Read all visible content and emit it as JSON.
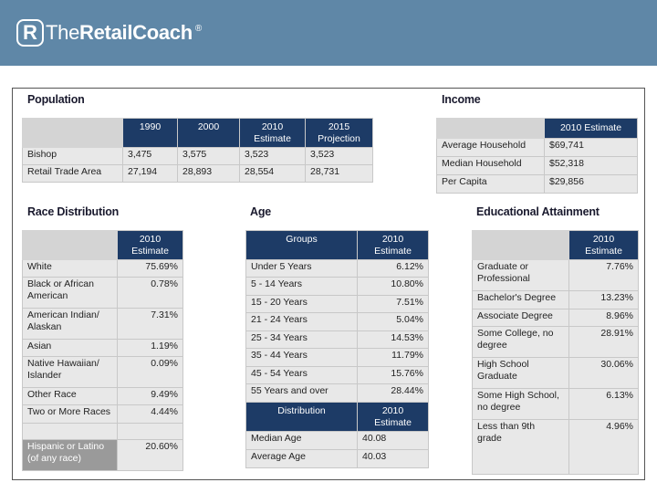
{
  "brand": {
    "mark": "R",
    "name_light": "The",
    "name_bold": "RetailCoach",
    "reg": "®"
  },
  "population": {
    "heading": "Population",
    "columns": [
      "1990",
      "2000",
      "2010\nEstimate",
      "2015\nProjection"
    ],
    "rows": [
      {
        "label": "Bishop",
        "values": [
          "3,475",
          "3,575",
          "3,523",
          "3,523"
        ]
      },
      {
        "label": "Retail Trade Area",
        "values": [
          "27,194",
          "28,893",
          "28,554",
          "28,731"
        ]
      }
    ]
  },
  "income": {
    "heading": "Income",
    "column": "2010 Estimate",
    "rows": [
      {
        "label": "Average Household",
        "value": "$69,741"
      },
      {
        "label": "Median Household",
        "value": "$52,318"
      },
      {
        "label": "Per Capita",
        "value": "$29,856"
      }
    ]
  },
  "race": {
    "heading": "Race Distribution",
    "column": "2010\nEstimate",
    "rows": [
      {
        "label": "White",
        "value": "75.69%"
      },
      {
        "label": "Black or African\nAmerican",
        "value": "0.78%"
      },
      {
        "label": "American Indian/\nAlaskan",
        "value": "7.31%"
      },
      {
        "label": "Asian",
        "value": "1.19%"
      },
      {
        "label": "Native Hawaiian/\nIslander",
        "value": "0.09%"
      },
      {
        "label": "Other Race",
        "value": "9.49%"
      },
      {
        "label": "Two or More Races",
        "value": "4.44%"
      }
    ],
    "hispanic": {
      "label": "Hispanic or Latino\n(of any race)",
      "value": "20.60%"
    }
  },
  "age": {
    "heading": "Age",
    "groups_header": "Groups",
    "column": "2010\nEstimate",
    "rows": [
      {
        "label": "Under 5 Years",
        "value": "6.12%"
      },
      {
        "label": "5 - 14 Years",
        "value": "10.80%"
      },
      {
        "label": "15 - 20 Years",
        "value": "7.51%"
      },
      {
        "label": "21 - 24 Years",
        "value": "5.04%"
      },
      {
        "label": "25 - 34 Years",
        "value": "14.53%"
      },
      {
        "label": "35 - 44 Years",
        "value": "11.79%"
      },
      {
        "label": "45 - 54 Years",
        "value": "15.76%"
      },
      {
        "label": "55 Years and over",
        "value": "28.44%"
      }
    ],
    "distribution_header": "Distribution",
    "distribution_column": "2010\nEstimate",
    "distribution_rows": [
      {
        "label": "Median Age",
        "value": "40.08"
      },
      {
        "label": "Average Age",
        "value": "40.03"
      }
    ]
  },
  "education": {
    "heading": "Educational Attainment",
    "column": "2010\nEstimate",
    "rows": [
      {
        "label": "Graduate or\nProfessional",
        "value": "7.76%"
      },
      {
        "label": "Bachelor's Degree",
        "value": "13.23%"
      },
      {
        "label": "Associate Degree",
        "value": "8.96%"
      },
      {
        "label": "Some College, no\ndegree",
        "value": "28.91%"
      },
      {
        "label": "High School\nGraduate",
        "value": "30.06%"
      },
      {
        "label": "Some High School,\nno degree",
        "value": "6.13%"
      },
      {
        "label": "Less than 9th\ngrade",
        "value": "4.96%"
      }
    ]
  }
}
